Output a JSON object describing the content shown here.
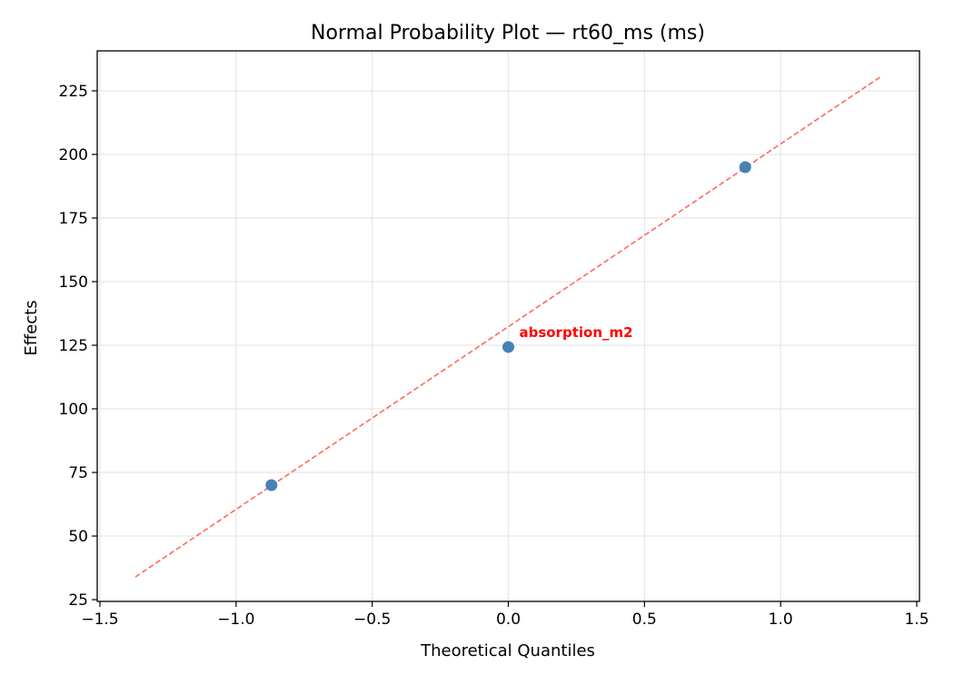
{
  "chart_data": {
    "type": "scatter",
    "title": "Normal Probability Plot — rt60_ms (ms)",
    "xlabel": "Theoretical Quantiles",
    "ylabel": "Effects",
    "xlim": [
      -1.51,
      1.51
    ],
    "ylim": [
      24.3,
      240.7
    ],
    "xticks": [
      -1.5,
      -1.0,
      -0.5,
      0.0,
      0.5,
      1.0,
      1.5
    ],
    "xtick_labels": [
      "−1.5",
      "−1.0",
      "−0.5",
      "0.0",
      "0.5",
      "1.0",
      "1.5"
    ],
    "yticks": [
      25,
      50,
      75,
      100,
      125,
      150,
      175,
      200,
      225
    ],
    "ytick_labels": [
      "25",
      "50",
      "75",
      "100",
      "125",
      "150",
      "175",
      "200",
      "225"
    ],
    "grid": true,
    "points": [
      {
        "x": -0.87,
        "y": 70
      },
      {
        "x": 0.0,
        "y": 124.3
      },
      {
        "x": 0.87,
        "y": 195
      }
    ],
    "reference_line": {
      "x": [
        -1.37,
        1.37
      ],
      "y": [
        33.9,
        230.7
      ],
      "style": "dashed"
    },
    "annotations": [
      {
        "text": "absorption_m2",
        "x": 0.0,
        "y": 124.3,
        "color": "#ff0000"
      }
    ],
    "colors": {
      "points": "#4682b4",
      "line": "#ff6961",
      "annotation": "#ff0000",
      "grid": "#e6e6e6"
    }
  }
}
